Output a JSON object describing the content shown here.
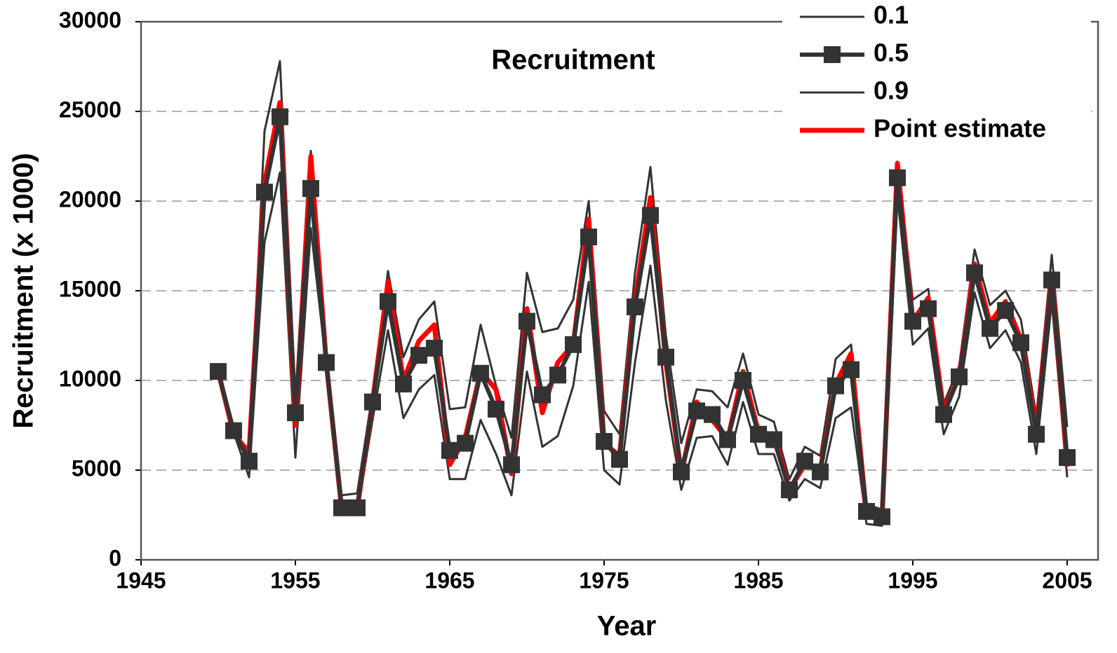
{
  "chart_data": {
    "type": "line",
    "title": "Recruitment",
    "x_label": "Year",
    "y_label": "Recruitment (x 1000)",
    "x": [
      1950,
      1951,
      1952,
      1953,
      1954,
      1955,
      1956,
      1957,
      1958,
      1959,
      1960,
      1961,
      1962,
      1963,
      1964,
      1965,
      1966,
      1967,
      1968,
      1969,
      1970,
      1971,
      1972,
      1973,
      1974,
      1975,
      1976,
      1977,
      1978,
      1979,
      1980,
      1981,
      1982,
      1983,
      1984,
      1985,
      1986,
      1987,
      1988,
      1989,
      1990,
      1991,
      1992,
      1993,
      1994,
      1995,
      1996,
      1997,
      1998,
      1999,
      2000,
      2001,
      2002,
      2003,
      2004,
      2005
    ],
    "series": [
      {
        "name": "0.1",
        "color": "#333333",
        "width": 3,
        "values": [
          10500,
          7100,
          4600,
          17700,
          21600,
          5700,
          18500,
          10800,
          2600,
          2600,
          7800,
          12800,
          7900,
          9500,
          10300,
          4500,
          4500,
          7800,
          5900,
          3600,
          10500,
          6300,
          6900,
          9700,
          15500,
          5000,
          4200,
          11000,
          16400,
          8900,
          3900,
          6800,
          6900,
          5300,
          8800,
          5900,
          5900,
          3300,
          4500,
          4000,
          7900,
          8500,
          2000,
          1900,
          20300,
          12000,
          12900,
          7000,
          9100,
          14900,
          11800,
          12800,
          11000,
          5900,
          14400,
          4600
        ]
      },
      {
        "name": "0.5",
        "color": "#333333",
        "width": 6,
        "marker": "square",
        "values": [
          10500,
          7200,
          5500,
          20500,
          24700,
          8200,
          20700,
          11000,
          2900,
          2900,
          8800,
          14400,
          9800,
          11400,
          11800,
          6100,
          6500,
          10400,
          8400,
          5300,
          13300,
          9200,
          10300,
          12000,
          18000,
          6600,
          5600,
          14100,
          19200,
          11300,
          4900,
          8300,
          8100,
          6700,
          10000,
          7000,
          6700,
          3900,
          5500,
          4900,
          9700,
          10600,
          2700,
          2400,
          21300,
          13300,
          14000,
          8100,
          10200,
          16000,
          12900,
          13900,
          12100,
          7000,
          15600,
          5700
        ]
      },
      {
        "name": "0.9",
        "color": "#333333",
        "width": 3,
        "values": [
          10500,
          7300,
          5800,
          23900,
          27800,
          9000,
          22800,
          11500,
          3600,
          3700,
          9300,
          16100,
          11300,
          13400,
          14400,
          8400,
          8500,
          13100,
          9700,
          6800,
          16000,
          12700,
          12900,
          14500,
          20000,
          8300,
          7000,
          16000,
          21900,
          12500,
          6500,
          9500,
          9400,
          8500,
          11500,
          8100,
          7700,
          4500,
          6300,
          5800,
          11200,
          12000,
          3100,
          2800,
          22200,
          14500,
          15100,
          8700,
          10800,
          17300,
          14200,
          15000,
          13400,
          8000,
          17000,
          7400
        ]
      },
      {
        "name": "Point estimate",
        "color": "#ff0000",
        "width": 7,
        "values": [
          10500,
          7000,
          6000,
          21000,
          25500,
          7500,
          22500,
          11000,
          2800,
          2800,
          8800,
          15500,
          10000,
          12200,
          13100,
          5300,
          6800,
          10500,
          9500,
          4800,
          14000,
          8200,
          11000,
          12000,
          19000,
          6500,
          5800,
          14500,
          20200,
          11000,
          4800,
          8800,
          7800,
          6700,
          10500,
          7100,
          7000,
          3900,
          5300,
          5000,
          9800,
          11500,
          2500,
          2200,
          22100,
          13300,
          14600,
          8300,
          10200,
          16500,
          13200,
          14400,
          12300,
          7300,
          15800,
          5200
        ]
      }
    ],
    "xlim": [
      1945,
      2007
    ],
    "xticks": [
      1945,
      1955,
      1965,
      1975,
      1985,
      1995,
      2005
    ],
    "ylim": [
      0,
      30000
    ],
    "yticks": [
      0,
      5000,
      10000,
      15000,
      20000,
      25000,
      30000
    ],
    "grid": true,
    "legend": "top-right"
  }
}
